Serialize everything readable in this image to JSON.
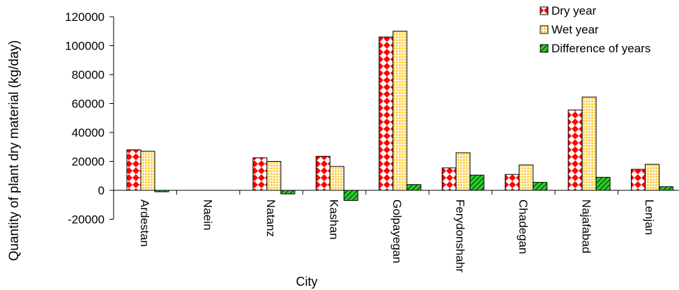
{
  "chart_data": {
    "type": "bar",
    "title": "",
    "xlabel": "City",
    "ylabel": "Quantity of plant dry material (kg/day)",
    "ylim": [
      -20000,
      120000
    ],
    "yticks": [
      -20000,
      0,
      20000,
      40000,
      60000,
      80000,
      100000,
      120000
    ],
    "tick_labels": [
      "-20000",
      "0",
      "20000",
      "40000",
      "60000",
      "80000",
      "100000",
      "120000"
    ],
    "grid": false,
    "legend_position": "top-right",
    "categories": [
      "Ardestan",
      "Naein",
      "Natanz",
      "Kashan",
      "Golpayegan",
      "Ferydonshahr",
      "Chadegan",
      "Najafabad",
      "Lenjan"
    ],
    "series": [
      {
        "name": "Dry year",
        "color": "#ff0000",
        "pattern": "red-diamond-checker",
        "values": [
          28000,
          0,
          22500,
          23500,
          106000,
          15500,
          11000,
          55500,
          14500
        ]
      },
      {
        "name": "Wet year",
        "color": "#ffd966",
        "pattern": "yellow-grid",
        "values": [
          27000,
          0,
          20000,
          16500,
          110000,
          26000,
          17500,
          64500,
          18000
        ]
      },
      {
        "name": "Difference of years",
        "color": "#33cc33",
        "pattern": "green-diagonal-hatch",
        "values": [
          -1000,
          0,
          -2500,
          -7000,
          4000,
          10500,
          5500,
          9000,
          2500
        ]
      }
    ]
  }
}
